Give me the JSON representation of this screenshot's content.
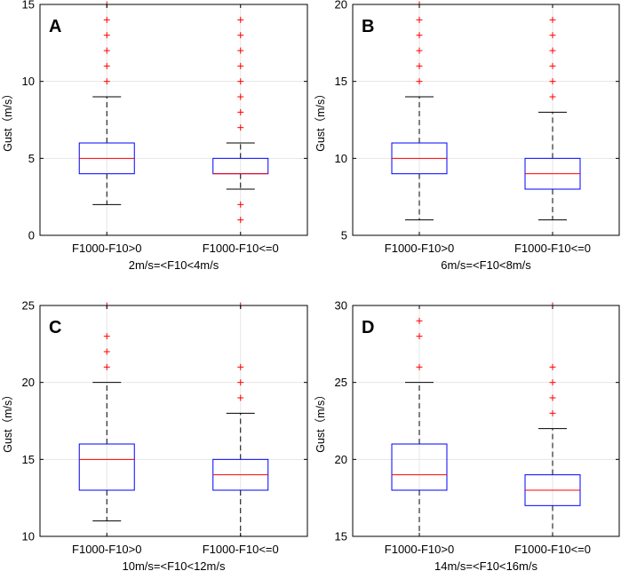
{
  "chart_data": [
    {
      "type": "box",
      "panel_letter": "A",
      "ylabel": "Gust（m/s）",
      "xlabel": "2m/s=<F10<4m/s",
      "ylim": [
        0,
        15
      ],
      "yticks": [
        0,
        5,
        10,
        15
      ],
      "categories": [
        "F1000-F10>0",
        "F1000-F10<=0"
      ],
      "grid": true,
      "boxes": [
        {
          "whisker_low": 2,
          "q1": 4,
          "median": 5,
          "q3": 6,
          "whisker_high": 9,
          "outliers": [
            10,
            11,
            12,
            13,
            14,
            15
          ]
        },
        {
          "whisker_low": 3,
          "q1": 4,
          "median": 4,
          "q3": 5,
          "whisker_high": 6,
          "outliers": [
            1,
            2,
            7,
            8,
            9,
            10,
            11,
            12,
            13,
            14
          ]
        }
      ]
    },
    {
      "type": "box",
      "panel_letter": "B",
      "ylabel": "Gust（m/s）",
      "xlabel": "6m/s=<F10<8m/s",
      "ylim": [
        5,
        20
      ],
      "yticks": [
        5,
        10,
        15,
        20
      ],
      "categories": [
        "F1000-F10>0",
        "F1000-F10<=0"
      ],
      "grid": true,
      "boxes": [
        {
          "whisker_low": 6,
          "q1": 9,
          "median": 10,
          "q3": 11,
          "whisker_high": 14,
          "outliers": [
            15,
            16,
            17,
            18,
            19,
            20
          ]
        },
        {
          "whisker_low": 6,
          "q1": 8,
          "median": 9,
          "q3": 10,
          "whisker_high": 13,
          "outliers": [
            14,
            15,
            16,
            17,
            18,
            19
          ]
        }
      ]
    },
    {
      "type": "box",
      "panel_letter": "C",
      "ylabel": "Gust（m/s）",
      "xlabel": "10m/s=<F10<12m/s",
      "ylim": [
        10,
        25
      ],
      "yticks": [
        10,
        15,
        20,
        25
      ],
      "categories": [
        "F1000-F10>0",
        "F1000-F10<=0"
      ],
      "grid": true,
      "boxes": [
        {
          "whisker_low": 11,
          "q1": 13,
          "median": 15,
          "q3": 16,
          "whisker_high": 20,
          "outliers": [
            21,
            22,
            23,
            25
          ]
        },
        {
          "whisker_low": 10,
          "q1": 13,
          "median": 14,
          "q3": 15,
          "whisker_high": 18,
          "outliers": [
            19,
            20,
            21,
            25
          ]
        }
      ]
    },
    {
      "type": "box",
      "panel_letter": "D",
      "ylabel": "Gust（m/s）",
      "xlabel": "14m/s=<F10<16m/s",
      "ylim": [
        15,
        30
      ],
      "yticks": [
        15,
        20,
        25,
        30
      ],
      "categories": [
        "F1000-F10>0",
        "F1000-F10<=0"
      ],
      "grid": true,
      "boxes": [
        {
          "whisker_low": 15,
          "q1": 18,
          "median": 19,
          "q3": 21,
          "whisker_high": 25,
          "outliers": [
            26,
            28,
            29
          ]
        },
        {
          "whisker_low": 15,
          "q1": 17,
          "median": 18,
          "q3": 19,
          "whisker_high": 22,
          "outliers": [
            23,
            24,
            25,
            26,
            30
          ]
        }
      ]
    }
  ],
  "colors": {
    "box": "#0000ff",
    "median": "#ff0000",
    "outlier": "#ff0000",
    "whisker": "#000000",
    "grid": "#e6e6e6",
    "axes": "#000000"
  }
}
